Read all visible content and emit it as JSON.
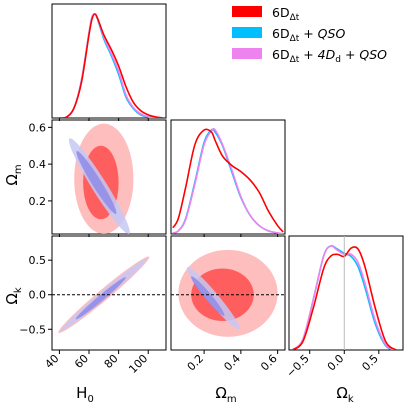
{
  "chart_data": {
    "type": "corner",
    "parameters": [
      {
        "key": "H0",
        "label_main": "H",
        "label_sub": "0",
        "range": [
          35,
          112
        ],
        "ticks": [
          40,
          60,
          80,
          100
        ]
      },
      {
        "key": "Om",
        "label_main": "Ω",
        "label_sub": "m",
        "range": [
          0.02,
          0.64
        ],
        "ticks": [
          0.2,
          0.4,
          0.6
        ],
        "tick_labels": [
          "0.2",
          "0.4",
          "0.6"
        ]
      },
      {
        "key": "Ok",
        "label_main": "Ω",
        "label_sub": "k",
        "range": [
          -0.8,
          0.85
        ],
        "ticks": [
          -0.5,
          0.0,
          0.5
        ],
        "tick_labels": [
          "−0.5",
          "0.0",
          "0.5"
        ]
      }
    ],
    "series": [
      {
        "name_main": "6D",
        "name_sub": "Δt",
        "name_rest": "",
        "color": "#ff0000"
      },
      {
        "name_main": "6D",
        "name_sub": "Δt",
        "name_rest": " + QSO",
        "color": "#00bfff"
      },
      {
        "name_main": "6D",
        "name_sub": "Δt",
        "name_rest": " + 4D",
        "name_sub2": "d",
        "name_rest2": " + QSO",
        "color": "#ee82ee"
      }
    ],
    "marginals": {
      "H0": {
        "x": [
          40,
          45,
          50,
          55,
          60,
          62,
          64,
          66,
          70,
          75,
          80,
          85,
          90,
          95,
          100,
          105,
          110
        ],
        "series_values": [
          [
            0.0,
            0.01,
            0.1,
            0.35,
            0.8,
            0.95,
            1.0,
            0.95,
            0.8,
            0.66,
            0.5,
            0.3,
            0.15,
            0.07,
            0.03,
            0.01,
            0.0
          ],
          [
            0.0,
            0.01,
            0.1,
            0.37,
            0.82,
            0.97,
            1.0,
            0.94,
            0.76,
            0.6,
            0.42,
            0.2,
            0.09,
            0.03,
            0.01,
            0.0,
            0.0
          ],
          [
            0.0,
            0.01,
            0.1,
            0.37,
            0.82,
            0.97,
            1.0,
            0.95,
            0.78,
            0.62,
            0.45,
            0.22,
            0.1,
            0.04,
            0.01,
            0.0,
            0.0
          ]
        ]
      },
      "Om": {
        "x": [
          0.03,
          0.06,
          0.1,
          0.15,
          0.2,
          0.24,
          0.26,
          0.3,
          0.35,
          0.4,
          0.45,
          0.5,
          0.55,
          0.6,
          0.63
        ],
        "series_values": [
          [
            0.06,
            0.15,
            0.45,
            0.86,
            1.0,
            0.98,
            0.9,
            0.75,
            0.66,
            0.6,
            0.52,
            0.4,
            0.22,
            0.08,
            0.02
          ],
          [
            0.01,
            0.03,
            0.15,
            0.5,
            0.88,
            1.0,
            0.98,
            0.85,
            0.6,
            0.35,
            0.18,
            0.08,
            0.03,
            0.01,
            0.0
          ],
          [
            0.01,
            0.03,
            0.14,
            0.48,
            0.86,
            0.99,
            1.0,
            0.86,
            0.62,
            0.36,
            0.18,
            0.08,
            0.03,
            0.01,
            0.0
          ]
        ]
      },
      "Ok": {
        "x": [
          -0.75,
          -0.6,
          -0.45,
          -0.3,
          -0.2,
          -0.1,
          0.0,
          0.1,
          0.2,
          0.3,
          0.45,
          0.6,
          0.75
        ],
        "series_values": [
          [
            0.0,
            0.08,
            0.4,
            0.78,
            0.9,
            0.92,
            0.9,
            0.98,
            0.97,
            0.8,
            0.4,
            0.08,
            0.0
          ],
          [
            0.0,
            0.1,
            0.48,
            0.9,
            1.0,
            0.97,
            0.93,
            0.9,
            0.8,
            0.6,
            0.25,
            0.04,
            0.0
          ],
          [
            0.0,
            0.1,
            0.48,
            0.9,
            1.0,
            0.96,
            0.92,
            0.92,
            0.84,
            0.64,
            0.28,
            0.05,
            0.0
          ]
        ]
      }
    },
    "reference_lines": {
      "Ok": 0.0
    },
    "contours_2d": {
      "Om_vs_H0": [
        {
          "series": 0,
          "level": "95%",
          "cx": 70,
          "cy": 0.32,
          "rx": 20,
          "ry": 0.3,
          "rot": 0
        },
        {
          "series": 0,
          "level": "68%",
          "cx": 68,
          "cy": 0.3,
          "rx": 12,
          "ry": 0.2,
          "rot": 0
        },
        {
          "series": 2,
          "level": "95%",
          "cx": 67,
          "cy": 0.28,
          "rx": 38,
          "ry": 0.04,
          "rot": -1
        },
        {
          "series": 2,
          "level": "68%",
          "cx": 65,
          "cy": 0.3,
          "rx": 25,
          "ry": 0.025,
          "rot": -1
        }
      ],
      "Ok_vs_H0": [
        {
          "series": 0,
          "level": "95%",
          "cx": 70,
          "cy": 0.0,
          "rx": 40,
          "ry": 0.08,
          "rot": 1
        },
        {
          "series": 0,
          "level": "68%",
          "cx": 68,
          "cy": -0.05,
          "rx": 22,
          "ry": 0.05,
          "rot": 1
        },
        {
          "series": 2,
          "level": "95%",
          "cx": 70,
          "cy": 0.0,
          "rx": 38,
          "ry": 0.06,
          "rot": 1
        },
        {
          "series": 2,
          "level": "68%",
          "cx": 68,
          "cy": -0.05,
          "rx": 22,
          "ry": 0.04,
          "rot": 1
        }
      ],
      "Ok_vs_Om": [
        {
          "series": 0,
          "level": "95%",
          "cx": 0.33,
          "cy": 0.02,
          "rx": 0.27,
          "ry": 0.63,
          "rot": 0
        },
        {
          "series": 0,
          "level": "68%",
          "cx": 0.3,
          "cy": 0.0,
          "rx": 0.17,
          "ry": 0.38,
          "rot": 0
        },
        {
          "series": 2,
          "level": "95%",
          "cx": 0.25,
          "cy": -0.05,
          "rx": 0.22,
          "ry": 0.08,
          "rot": -1
        },
        {
          "series": 2,
          "level": "68%",
          "cx": 0.22,
          "cy": -0.02,
          "rx": 0.14,
          "ry": 0.05,
          "rot": -1
        }
      ]
    }
  }
}
